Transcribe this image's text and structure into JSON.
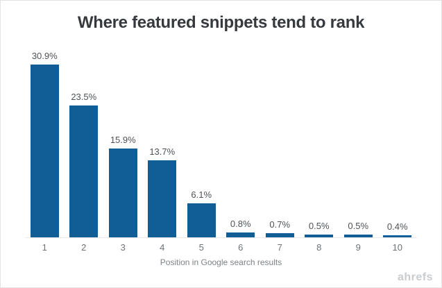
{
  "chart_data": {
    "type": "bar",
    "title": "Where featured snippets tend to rank",
    "xlabel": "Position in Google search results",
    "ylabel": "",
    "categories": [
      "1",
      "2",
      "3",
      "4",
      "5",
      "6",
      "7",
      "8",
      "9",
      "10"
    ],
    "values": [
      30.9,
      23.5,
      15.9,
      13.7,
      6.1,
      0.8,
      0.7,
      0.5,
      0.5,
      0.4
    ],
    "value_labels": [
      "30.9%",
      "23.5%",
      "15.9%",
      "13.7%",
      "6.1%",
      "0.8%",
      "0.7%",
      "0.5%",
      "0.5%",
      "0.4%"
    ],
    "ylim": [
      0,
      33
    ],
    "grid": false,
    "legend": null,
    "bar_color": "#115e96"
  },
  "watermark": "ahrefs",
  "colors": {
    "bar": "#115e96",
    "title_text": "#363a3e",
    "value_label": "#4e5256",
    "tick_label": "#6e7276",
    "axis_title": "#7d8287",
    "watermark": "#c9cccf",
    "axis_line": "#e9e9e9",
    "background": "#ffffff"
  }
}
